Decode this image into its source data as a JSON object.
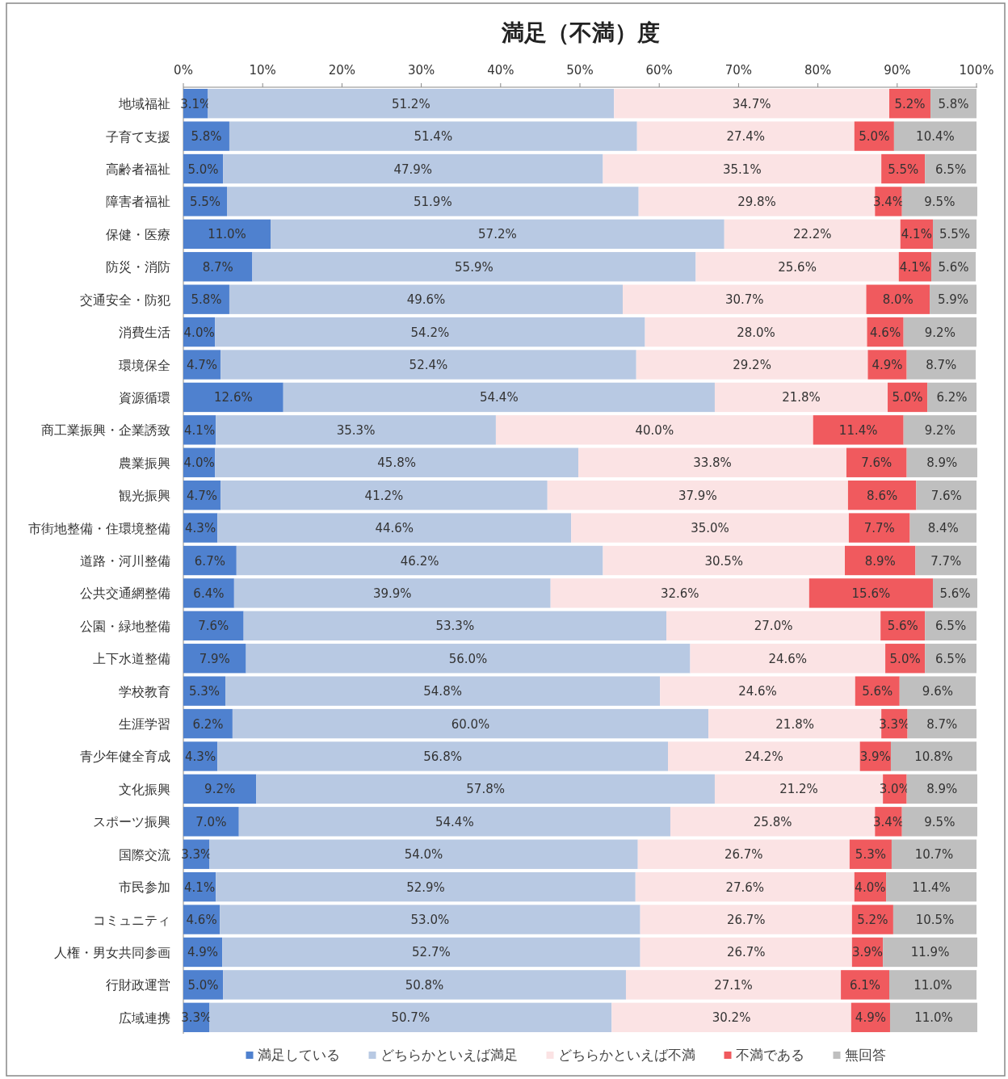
{
  "chart_data": {
    "type": "bar",
    "orientation": "horizontal",
    "stacked": true,
    "title": "満足（不満）度",
    "categories": [
      "地域福祉",
      "子育て支援",
      "高齢者福祉",
      "障害者福祉",
      "保健・医療",
      "防災・消防",
      "交通安全・防犯",
      "消費生活",
      "環境保全",
      "資源循環",
      "商工業振興・企業誘致",
      "農業振興",
      "観光振興",
      "市街地整備・住環境整備",
      "道路・河川整備",
      "公共交通網整備",
      "公園・緑地整備",
      "上下水道整備",
      "学校教育",
      "生涯学習",
      "青少年健全育成",
      "文化振興",
      "スポーツ振興",
      "国際交流",
      "市民参加",
      "コミュニティ",
      "人権・男女共同参画",
      "行財政運営",
      "広域連携"
    ],
    "xlim": [
      0,
      100.1
    ],
    "xticks": [
      {
        "value": 0,
        "label": "0%"
      },
      {
        "value": 10,
        "label": "10%"
      },
      {
        "value": 20,
        "label": "20%"
      },
      {
        "value": 30,
        "label": "30%"
      },
      {
        "value": 40,
        "label": "40%"
      },
      {
        "value": 50,
        "label": "50%"
      },
      {
        "value": 60,
        "label": "60%"
      },
      {
        "value": 70,
        "label": "70%"
      },
      {
        "value": 80,
        "label": "80%"
      },
      {
        "value": 90,
        "label": "90%"
      },
      {
        "value": 100,
        "label": "100%"
      }
    ],
    "legend": "bottom",
    "series": [
      {
        "name": "満足している",
        "color": "#4f81cf",
        "values": [
          3.1,
          5.8,
          5.0,
          5.5,
          11.0,
          8.7,
          5.8,
          4.0,
          4.7,
          12.6,
          4.1,
          4.0,
          4.7,
          4.3,
          6.7,
          6.4,
          7.6,
          7.9,
          5.3,
          6.2,
          4.3,
          9.2,
          7.0,
          3.3,
          4.1,
          4.6,
          4.9,
          5.0,
          3.3
        ],
        "value_labels": [
          "3.1%",
          "5.8%",
          "5.0%",
          "5.5%",
          "11.0%",
          "8.7%",
          "5.8%",
          "4.0%",
          "4.7%",
          "12.6%",
          "4.1%",
          "4.0%",
          "4.7%",
          "4.3%",
          "6.7%",
          "6.4%",
          "7.6%",
          "7.9%",
          "5.3%",
          "6.2%",
          "4.3%",
          "9.2%",
          "7.0%",
          "3.3%",
          "4.1%",
          "4.6%",
          "4.9%",
          "5.0%",
          "3.3%"
        ]
      },
      {
        "name": "どちらかといえば満足",
        "color": "#b8c9e3",
        "values": [
          51.2,
          51.4,
          47.9,
          51.9,
          57.2,
          55.9,
          49.6,
          54.2,
          52.4,
          54.4,
          35.3,
          45.8,
          41.2,
          44.6,
          46.2,
          39.9,
          53.3,
          56.0,
          54.8,
          60.0,
          56.8,
          57.8,
          54.4,
          54.0,
          52.9,
          53.0,
          52.7,
          50.8,
          50.7
        ],
        "value_labels": [
          "51.2%",
          "51.4%",
          "47.9%",
          "51.9%",
          "57.2%",
          "55.9%",
          "49.6%",
          "54.2%",
          "52.4%",
          "54.4%",
          "35.3%",
          "45.8%",
          "41.2%",
          "44.6%",
          "46.2%",
          "39.9%",
          "53.3%",
          "56.0%",
          "54.8%",
          "60.0%",
          "56.8%",
          "57.8%",
          "54.4%",
          "54.0%",
          "52.9%",
          "53.0%",
          "52.7%",
          "50.8%",
          "50.7%"
        ]
      },
      {
        "name": "どちらかといえば不満",
        "color": "#fbe3e4",
        "values": [
          34.7,
          27.4,
          35.1,
          29.8,
          22.2,
          25.6,
          30.7,
          28.0,
          29.2,
          21.8,
          40.0,
          33.8,
          37.9,
          35.0,
          30.5,
          32.6,
          27.0,
          24.6,
          24.6,
          21.8,
          24.2,
          21.2,
          25.8,
          26.7,
          27.6,
          26.7,
          26.7,
          27.1,
          30.2
        ],
        "value_labels": [
          "34.7%",
          "27.4%",
          "35.1%",
          "29.8%",
          "22.2%",
          "25.6%",
          "30.7%",
          "28.0%",
          "29.2%",
          "21.8%",
          "40.0%",
          "33.8%",
          "37.9%",
          "35.0%",
          "30.5%",
          "32.6%",
          "27.0%",
          "24.6%",
          "24.6%",
          "21.8%",
          "24.2%",
          "21.2%",
          "25.8%",
          "26.7%",
          "27.6%",
          "26.7%",
          "26.7%",
          "27.1%",
          "30.2%"
        ]
      },
      {
        "name": "不満である",
        "color": "#f05a5e",
        "values": [
          5.2,
          5.0,
          5.5,
          3.4,
          4.1,
          4.1,
          8.0,
          4.6,
          4.9,
          5.0,
          11.4,
          7.6,
          8.6,
          7.7,
          8.9,
          15.6,
          5.6,
          5.0,
          5.6,
          3.3,
          3.9,
          3.0,
          3.4,
          5.3,
          4.0,
          5.2,
          3.9,
          6.1,
          4.9
        ],
        "value_labels": [
          "5.2%",
          "5.0%",
          "5.5%",
          "3.4%",
          "4.1%",
          "4.1%",
          "8.0%",
          "4.6%",
          "4.9%",
          "5.0%",
          "11.4%",
          "7.6%",
          "8.6%",
          "7.7%",
          "8.9%",
          "15.6%",
          "5.6%",
          "5.0%",
          "5.6%",
          "3.3%",
          "3.9%",
          "3.0%",
          "3.4%",
          "5.3%",
          "4.0%",
          "5.2%",
          "3.9%",
          "6.1%",
          "4.9%"
        ]
      },
      {
        "name": "無回答",
        "color": "#bfbfbf",
        "values": [
          5.8,
          10.4,
          6.5,
          9.5,
          5.5,
          5.6,
          5.9,
          9.2,
          8.7,
          6.2,
          9.2,
          8.9,
          7.6,
          8.4,
          7.7,
          5.6,
          6.5,
          6.5,
          9.6,
          8.7,
          10.8,
          8.9,
          9.5,
          10.7,
          11.4,
          10.5,
          11.9,
          11.0,
          11.0
        ],
        "value_labels": [
          "5.8%",
          "10.4%",
          "6.5%",
          "9.5%",
          "5.5%",
          "5.6%",
          "5.9%",
          "9.2%",
          "8.7%",
          "6.2%",
          "9.2%",
          "8.9%",
          "7.6%",
          "8.4%",
          "7.7%",
          "5.6%",
          "6.5%",
          "6.5%",
          "9.6%",
          "8.7%",
          "10.8%",
          "8.9%",
          "9.5%",
          "10.7%",
          "11.4%",
          "10.5%",
          "11.9%",
          "11.0%",
          "11.0%"
        ]
      }
    ]
  }
}
